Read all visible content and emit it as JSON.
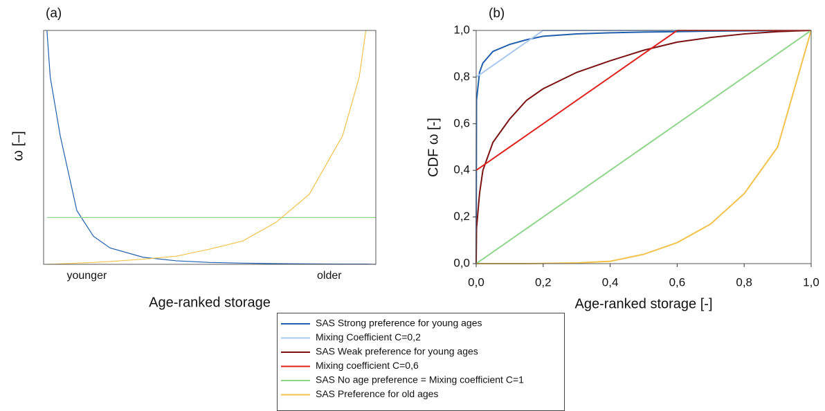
{
  "chart_data": [
    {
      "type": "line",
      "panel": "(a)",
      "y_label": "ω [–]",
      "x_label": "Age-ranked storage",
      "xlim": [
        0,
        1
      ],
      "ylim": [
        0,
        1
      ],
      "tick_marks": false,
      "xticks": [
        {
          "value": 0.13,
          "label": "younger"
        },
        {
          "value": 0.86,
          "label": "older"
        }
      ],
      "x": [
        0.01,
        0.02,
        0.05,
        0.1,
        0.15,
        0.2,
        0.3,
        0.4,
        0.5,
        0.6,
        0.7,
        0.8,
        0.9,
        0.95,
        0.97,
        1
      ],
      "series": [
        {
          "color": "#1f5fae",
          "values": [
            1,
            0.8,
            0.55,
            0.23,
            0.12,
            0.07,
            0.03,
            0.015,
            0.008,
            0.005,
            0.003,
            0.002,
            0.001,
            0.001,
            0.001,
            0
          ]
        },
        {
          "color": "#8fd68a",
          "values": [
            0.2,
            0.2,
            0.2,
            0.2,
            0.2,
            0.2,
            0.2,
            0.2,
            0.2,
            0.2,
            0.2,
            0.2,
            0.2,
            0.2,
            0.2,
            0.2
          ]
        },
        {
          "color": "#f3c24a",
          "values": [
            0,
            0,
            0.002,
            0.005,
            0.008,
            0.012,
            0.022,
            0.035,
            0.065,
            0.1,
            0.18,
            0.3,
            0.55,
            0.8,
            1,
            null
          ]
        }
      ]
    },
    {
      "type": "line",
      "panel": "(b)",
      "y_label": "CDF ω [-]",
      "x_label": "Age-ranked storage [-]",
      "xlim": [
        0,
        1
      ],
      "ylim": [
        0,
        1
      ],
      "tick_marks": true,
      "xticks": [
        {
          "value": 0,
          "label": "0,0"
        },
        {
          "value": 0.2,
          "label": "0,2"
        },
        {
          "value": 0.4,
          "label": "0,4"
        },
        {
          "value": 0.6,
          "label": "0,6"
        },
        {
          "value": 0.8,
          "label": "0,8"
        },
        {
          "value": 1,
          "label": "1,0"
        }
      ],
      "yticks": [
        {
          "value": 0,
          "label": "0,0"
        },
        {
          "value": 0.2,
          "label": "0,2"
        },
        {
          "value": 0.4,
          "label": "0,4"
        },
        {
          "value": 0.6,
          "label": "0,6"
        },
        {
          "value": 0.8,
          "label": "0,8"
        },
        {
          "value": 1,
          "label": "1,0"
        }
      ],
      "x": [
        0,
        0.001,
        0.01,
        0.02,
        0.05,
        0.1,
        0.15,
        0.2,
        0.3,
        0.4,
        0.5,
        0.6,
        0.7,
        0.8,
        0.9,
        1
      ],
      "series": [
        {
          "name": "SAS Strong preference for young ages",
          "color": "#1f5fae",
          "values": [
            0,
            0.7,
            0.82,
            0.86,
            0.91,
            0.94,
            0.96,
            0.975,
            0.985,
            0.99,
            0.993,
            0.995,
            0.997,
            0.998,
            0.999,
            1
          ]
        },
        {
          "name": "Mixing Coefficient C=0,2",
          "color": "#a9c8ef",
          "values": [
            0.8,
            0.801,
            0.81,
            0.82,
            0.85,
            0.9,
            0.95,
            1,
            1,
            1,
            1,
            1,
            1,
            1,
            1,
            1
          ]
        },
        {
          "name": "SAS Weak preference for young ages",
          "color": "#7b1010",
          "values": [
            0,
            0.15,
            0.3,
            0.4,
            0.52,
            0.62,
            0.7,
            0.75,
            0.82,
            0.87,
            0.915,
            0.95,
            0.97,
            0.985,
            0.995,
            1
          ]
        },
        {
          "name": "Mixing coefficient C=0,6",
          "color": "#e0201b",
          "values": [
            0.4,
            0.401,
            0.41,
            0.42,
            0.45,
            0.5,
            0.55,
            0.6,
            0.7,
            0.8,
            0.9,
            1,
            1,
            1,
            1,
            1
          ]
        },
        {
          "name": "SAS No age preference = Mixing coefficient C=1",
          "color": "#8fd68a",
          "values": [
            0,
            0.001,
            0.01,
            0.02,
            0.05,
            0.1,
            0.15,
            0.2,
            0.3,
            0.4,
            0.5,
            0.6,
            0.7,
            0.8,
            0.9,
            1
          ]
        },
        {
          "name": "SAS Preference for old ages",
          "color": "#f3c24a",
          "values": [
            0,
            0,
            0,
            0,
            0,
            0,
            0,
            0.001,
            0.003,
            0.01,
            0.04,
            0.09,
            0.17,
            0.3,
            0.5,
            1
          ]
        }
      ]
    }
  ]
}
